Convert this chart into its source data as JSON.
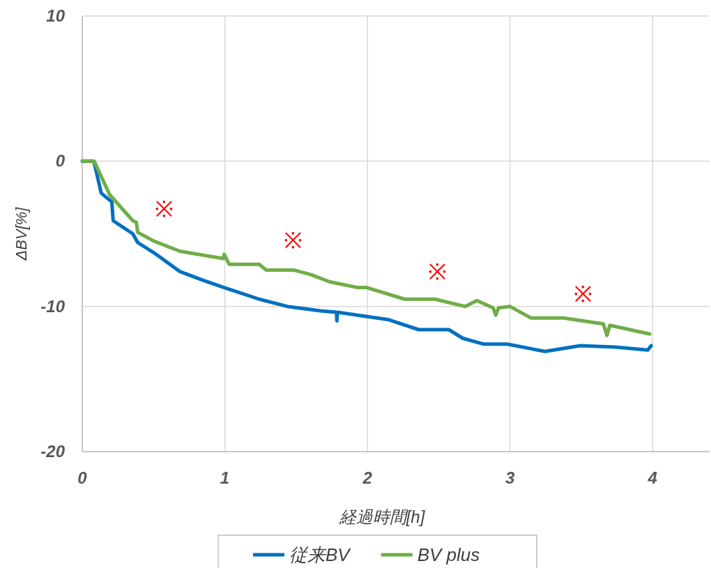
{
  "chart_data": {
    "type": "line",
    "xlabel": "経過時間[h]",
    "ylabel": "ΔBV[%]",
    "xlim": [
      0,
      4.4
    ],
    "xticks": [
      0,
      1,
      2,
      3,
      4
    ],
    "ylim": [
      -20,
      10
    ],
    "yticks": [
      -20,
      -10,
      0,
      10
    ],
    "grid": true,
    "legend": "bottom",
    "series": [
      {
        "name": "従来BV",
        "color": "#0070c0",
        "x": [
          0,
          0.074,
          0.084,
          0.133,
          0.207,
          0.217,
          0.355,
          0.389,
          0.502,
          0.685,
          0.847,
          0.995,
          1.241,
          1.438,
          1.67,
          1.783,
          1.786,
          1.79,
          1.931,
          2.143,
          2.36,
          2.571,
          2.67,
          2.818,
          2.98,
          3.246,
          3.493,
          3.739,
          3.966,
          3.99
        ],
        "values": [
          0,
          0,
          -0.1,
          -2.2,
          -2.8,
          -4.1,
          -5.0,
          -5.6,
          -6.3,
          -7.6,
          -8.2,
          -8.7,
          -9.5,
          -10.0,
          -10.3,
          -10.4,
          -11.0,
          -10.4,
          -10.6,
          -10.9,
          -11.6,
          -11.6,
          -12.2,
          -12.6,
          -12.6,
          -13.1,
          -12.7,
          -12.8,
          -13.0,
          -12.7
        ]
      },
      {
        "name": "BV plus",
        "color": "#70ad47",
        "x": [
          0,
          0.084,
          0.192,
          0.355,
          0.379,
          0.389,
          0.502,
          0.685,
          0.99,
          0.995,
          1.03,
          1.241,
          1.291,
          1.488,
          1.601,
          1.734,
          1.931,
          1.995,
          2.261,
          2.473,
          2.685,
          2.768,
          2.882,
          2.9,
          2.92,
          2.999,
          3.148,
          3.374,
          3.655,
          3.68,
          3.7,
          3.98
        ],
        "values": [
          0,
          0,
          -2.3,
          -4.1,
          -4.2,
          -4.9,
          -5.5,
          -6.2,
          -6.7,
          -6.4,
          -7.1,
          -7.1,
          -7.5,
          -7.5,
          -7.8,
          -8.3,
          -8.7,
          -8.7,
          -9.5,
          -9.5,
          -10.0,
          -9.6,
          -10.1,
          -10.6,
          -10.1,
          -10.0,
          -10.8,
          -10.8,
          -11.2,
          -12.0,
          -11.3,
          -11.9
        ]
      }
    ],
    "annotations": [
      "※",
      "※",
      "※",
      "※"
    ]
  }
}
